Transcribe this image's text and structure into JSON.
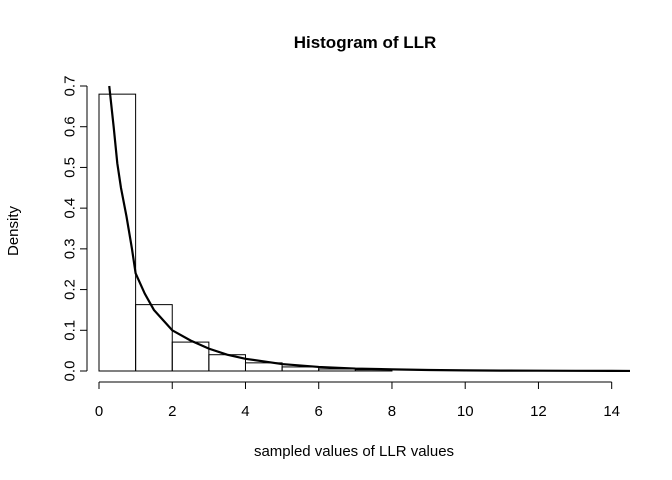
{
  "chart_data": {
    "type": "bar",
    "title": "Histogram of LLR",
    "xlabel": "sampled values of LLR values",
    "ylabel": "Density",
    "xlim": [
      0,
      14.5
    ],
    "ylim": [
      0,
      0.7
    ],
    "x_ticks": [
      0,
      2,
      4,
      6,
      8,
      10,
      12,
      14
    ],
    "y_ticks": [
      0.0,
      0.1,
      0.2,
      0.3,
      0.4,
      0.5,
      0.6,
      0.7
    ],
    "y_tick_labels": [
      "0.0",
      "0.1",
      "0.2",
      "0.3",
      "0.4",
      "0.5",
      "0.6",
      "0.7"
    ],
    "grid": false,
    "bins": [
      {
        "x0": 0,
        "x1": 1,
        "density": 0.68
      },
      {
        "x0": 1,
        "x1": 2,
        "density": 0.163
      },
      {
        "x0": 2,
        "x1": 3,
        "density": 0.071
      },
      {
        "x0": 3,
        "x1": 4,
        "density": 0.04
      },
      {
        "x0": 4,
        "x1": 5,
        "density": 0.02
      },
      {
        "x0": 5,
        "x1": 6,
        "density": 0.01
      },
      {
        "x0": 6,
        "x1": 7,
        "density": 0.005
      },
      {
        "x0": 7,
        "x1": 8,
        "density": 0.003
      }
    ],
    "density_curve": {
      "x": [
        0.28,
        0.4,
        0.5,
        0.6,
        0.75,
        0.9,
        1.0,
        1.25,
        1.5,
        2.0,
        2.5,
        3.0,
        3.5,
        4.0,
        5.0,
        6.0,
        7.0,
        8.0,
        9.0,
        10.0,
        11.0,
        12.0,
        13.0,
        14.0,
        14.5
      ],
      "y": [
        0.7,
        0.6,
        0.51,
        0.45,
        0.38,
        0.3,
        0.24,
        0.19,
        0.15,
        0.1,
        0.075,
        0.055,
        0.04,
        0.03,
        0.017,
        0.01,
        0.006,
        0.004,
        0.0025,
        0.0015,
        0.001,
        0.0007,
        0.0005,
        0.0003,
        0.0002
      ]
    }
  }
}
